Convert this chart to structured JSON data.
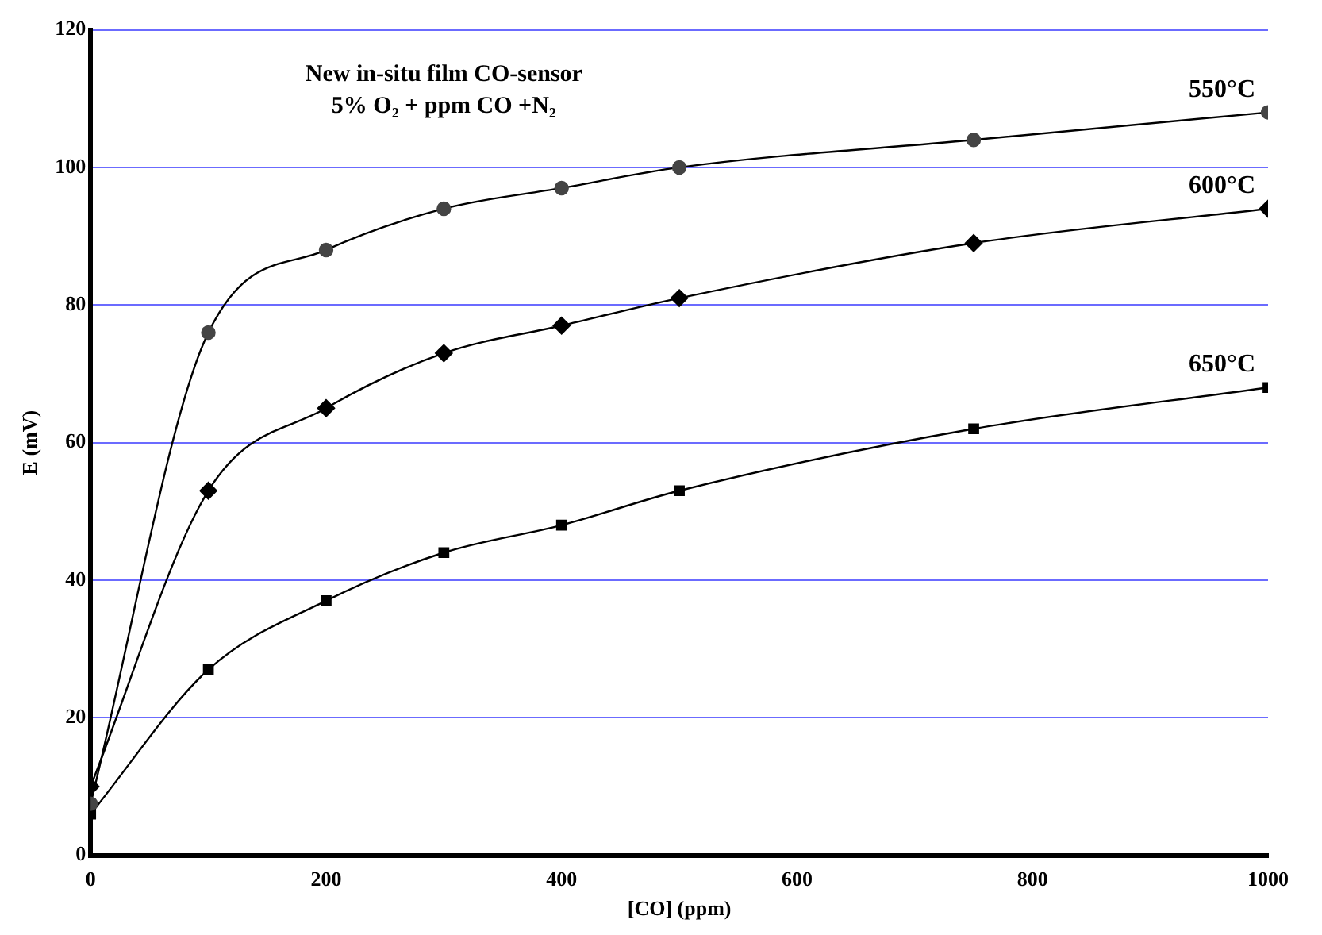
{
  "chart_data": {
    "type": "line",
    "title": "New in-situ film CO-sensor",
    "subtitle": "5% O₂ + ppm CO +N₂",
    "xlabel": "[CO] (ppm)",
    "ylabel": "E (mV)",
    "x": [
      0,
      100,
      200,
      300,
      400,
      500,
      750,
      1000
    ],
    "series": [
      {
        "name": "550°C",
        "color": "#444444",
        "marker": "circle",
        "values": [
          7.5,
          76,
          88,
          94,
          97,
          100,
          104,
          108
        ]
      },
      {
        "name": "600°C",
        "color": "#000000",
        "marker": "diamond",
        "values": [
          10,
          53,
          65,
          73,
          77,
          81,
          89,
          94
        ]
      },
      {
        "name": "650°C",
        "color": "#000000",
        "marker": "square",
        "values": [
          6,
          27,
          37,
          44,
          48,
          53,
          62,
          68
        ]
      }
    ],
    "xlim": [
      0,
      1000
    ],
    "xticks": [
      0,
      200,
      400,
      600,
      800,
      1000
    ],
    "ylim": [
      0,
      120
    ],
    "yticks": [
      0,
      20,
      40,
      60,
      80,
      100,
      120
    ],
    "grid": "y",
    "legend": false,
    "line_style": "solid"
  }
}
